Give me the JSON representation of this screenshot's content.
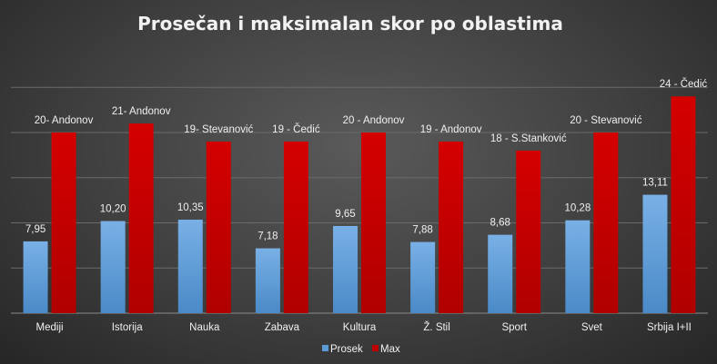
{
  "chart_data": {
    "type": "bar",
    "title": "Prosečan i maksimalan skor po oblastima",
    "categories": [
      "Mediji",
      "Istorija",
      "Nauka",
      "Zabava",
      "Kultura",
      "Ž. Stil",
      "Sport",
      "Svet",
      "Srbija I+II"
    ],
    "series": [
      {
        "name": "Prosek",
        "color": "#5b9bd5",
        "values": [
          7.95,
          10.2,
          10.35,
          7.18,
          9.65,
          7.88,
          8.68,
          10.28,
          13.11
        ],
        "labels": [
          "7,95",
          "10,20",
          "10,35",
          "7,18",
          "9,65",
          "7,88",
          "8,68",
          "10,28",
          "13,11"
        ]
      },
      {
        "name": "Max",
        "color": "#c00000",
        "values": [
          20,
          21,
          19,
          19,
          20,
          19,
          18,
          20,
          24
        ],
        "labels": [
          "20- Andonov",
          "21- Andonov",
          "19- Stevanović",
          "19 - Čedić",
          "20 - Andonov",
          "19 - Andonov",
          "18 - S.Stanković",
          "20 - Stevanović",
          "24 - Čedić"
        ]
      }
    ],
    "ylim": [
      0,
      25
    ],
    "grid": true,
    "legend": "bottom"
  }
}
